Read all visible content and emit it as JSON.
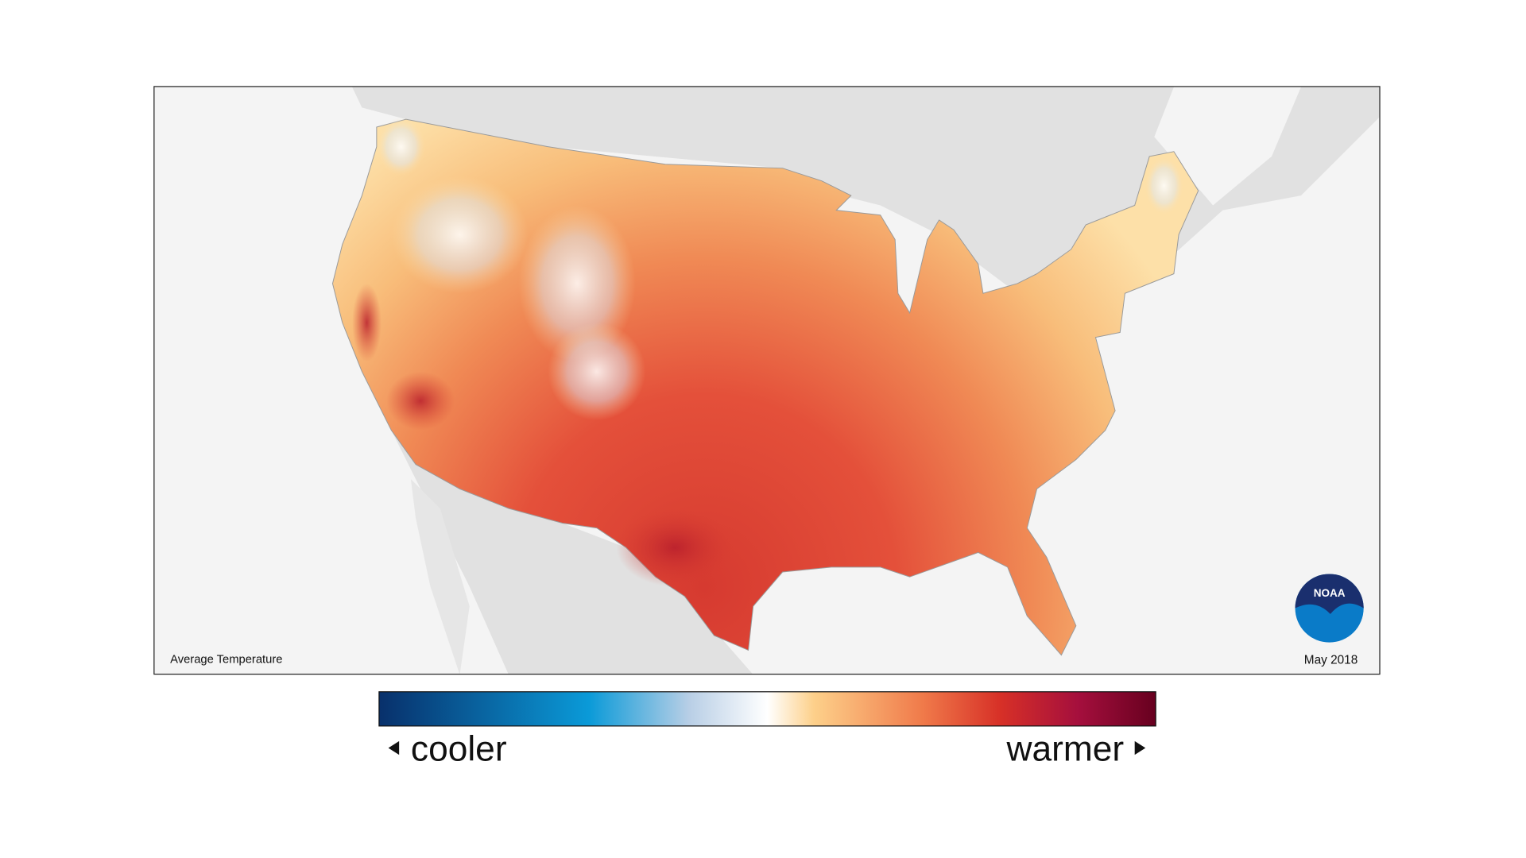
{
  "map": {
    "caption": "Average Temperature",
    "date": "May 2018",
    "logo": "NOAA"
  },
  "legend": {
    "low": "cooler",
    "high": "warmer"
  }
}
